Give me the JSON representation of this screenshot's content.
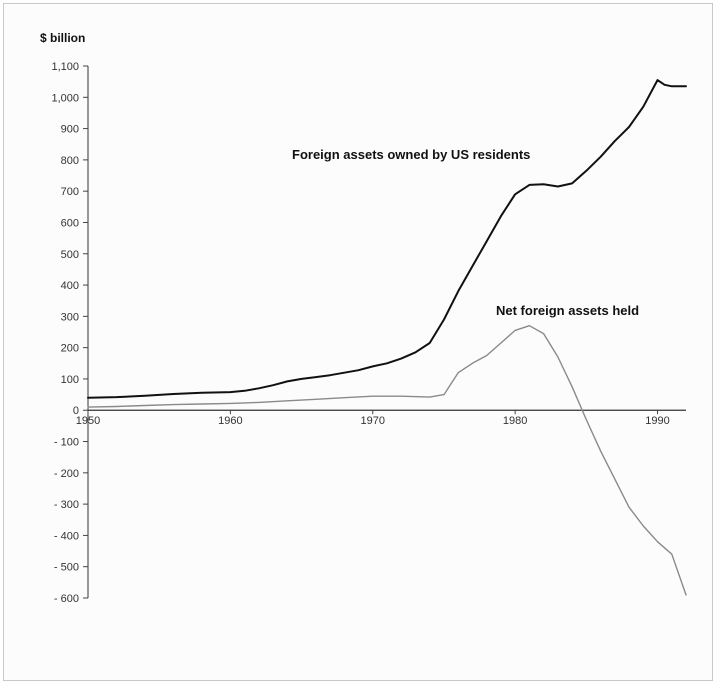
{
  "chart_data": {
    "type": "line",
    "title": "",
    "xlabel": "",
    "ylabel": "$ billion",
    "xlim": [
      1950,
      1992
    ],
    "ylim": [
      -600,
      1100
    ],
    "x_ticks": [
      1950,
      1960,
      1970,
      1980,
      1990
    ],
    "y_ticks": [
      1100,
      1000,
      900,
      800,
      700,
      600,
      500,
      400,
      300,
      200,
      100,
      0,
      -100,
      -200,
      -300,
      -400,
      -500,
      -600
    ],
    "grid": false,
    "series": [
      {
        "name": "Foreign assets owned by US residents",
        "color": "#111111",
        "x": [
          1950,
          1952,
          1954,
          1956,
          1958,
          1960,
          1961,
          1962,
          1963,
          1964,
          1965,
          1966,
          1967,
          1968,
          1969,
          1970,
          1971,
          1972,
          1973,
          1974,
          1975,
          1976,
          1977,
          1978,
          1979,
          1980,
          1981,
          1982,
          1983,
          1984,
          1985,
          1986,
          1987,
          1988,
          1989,
          1990,
          1990.5,
          1991,
          1992
        ],
        "y": [
          40,
          42,
          46,
          52,
          56,
          58,
          62,
          70,
          80,
          92,
          100,
          106,
          112,
          120,
          128,
          140,
          150,
          165,
          185,
          215,
          290,
          380,
          460,
          540,
          620,
          690,
          720,
          722,
          715,
          725,
          765,
          810,
          860,
          905,
          970,
          1055,
          1040,
          1035,
          1035
        ]
      },
      {
        "name": "Net foreign assets held",
        "color": "#8a8a8a",
        "x": [
          1950,
          1952,
          1954,
          1956,
          1958,
          1960,
          1962,
          1964,
          1966,
          1968,
          1970,
          1972,
          1974,
          1975,
          1976,
          1977,
          1978,
          1979,
          1980,
          1981,
          1982,
          1983,
          1984,
          1985,
          1986,
          1987,
          1988,
          1989,
          1990,
          1991,
          1992
        ],
        "y": [
          10,
          12,
          15,
          18,
          20,
          22,
          25,
          30,
          35,
          40,
          45,
          45,
          42,
          50,
          120,
          150,
          175,
          215,
          255,
          270,
          245,
          170,
          75,
          -30,
          -130,
          -220,
          -310,
          -370,
          -420,
          -460,
          -590
        ]
      }
    ]
  }
}
